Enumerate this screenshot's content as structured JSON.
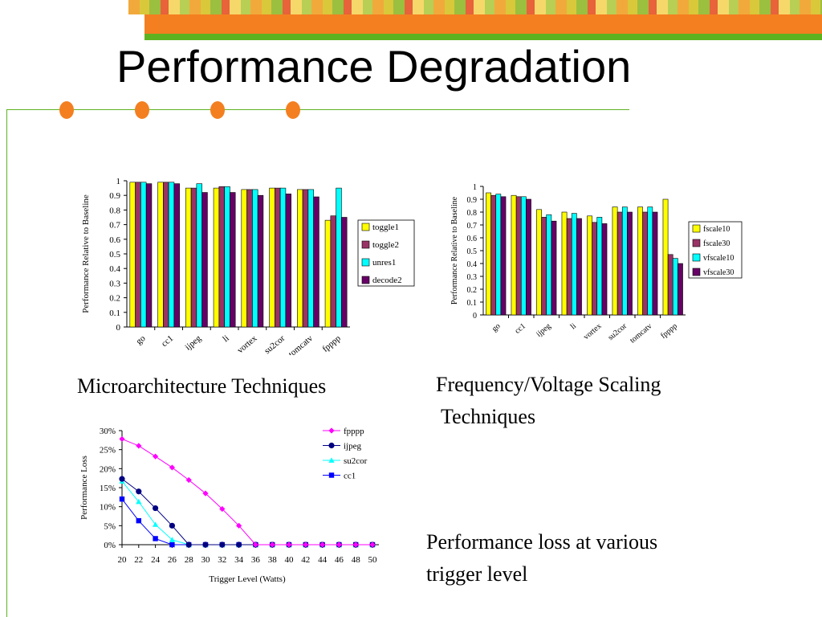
{
  "slide": {
    "title": "Performance Degradation",
    "caption_left": "Microarchitecture Techniques",
    "caption_right_line1": "Frequency/Voltage Scaling",
    "caption_right_line2": " Techniques",
    "caption_bottom_line1": "Performance loss at various",
    "caption_bottom_line2": "trigger level"
  },
  "colors": {
    "accent_orange": "#f47f20",
    "accent_green": "#5fb21f"
  },
  "chart_data": [
    {
      "type": "bar",
      "ylabel": "Performance Relative to Baseline",
      "xlabel": "",
      "ylim": [
        0,
        1
      ],
      "yticks": [
        "0",
        "0.1",
        "0.2",
        "0.3",
        "0.4",
        "0.5",
        "0.6",
        "0.7",
        "0.8",
        "0.9",
        "1"
      ],
      "categories": [
        "go",
        "cc1",
        "ijpeg",
        "li",
        "vortex",
        "su2cor",
        "tomcatv",
        "fpppp"
      ],
      "legend_position": "right",
      "series": [
        {
          "name": "toggle1",
          "color": "#ffff00",
          "values": [
            0.99,
            0.99,
            0.95,
            0.95,
            0.94,
            0.95,
            0.94,
            0.73
          ]
        },
        {
          "name": "toggle2",
          "color": "#993366",
          "values": [
            0.99,
            0.99,
            0.95,
            0.96,
            0.94,
            0.95,
            0.94,
            0.76
          ]
        },
        {
          "name": "unres1",
          "color": "#00ffff",
          "values": [
            0.99,
            0.99,
            0.98,
            0.96,
            0.94,
            0.95,
            0.94,
            0.95
          ]
        },
        {
          "name": "decode2",
          "color": "#660066",
          "values": [
            0.98,
            0.98,
            0.92,
            0.92,
            0.9,
            0.91,
            0.89,
            0.75
          ]
        }
      ]
    },
    {
      "type": "bar",
      "ylabel": "Performance Relative to Baseline",
      "xlabel": "",
      "ylim": [
        0,
        1
      ],
      "yticks": [
        "0",
        "0.1",
        "0.2",
        "0.3",
        "0.4",
        "0.5",
        "0.6",
        "0.7",
        "0.8",
        "0.9",
        "1"
      ],
      "categories": [
        "go",
        "cc1",
        "ijpeg",
        "li",
        "vortex",
        "su2cor",
        "tomcatv",
        "fpppp"
      ],
      "legend_position": "right",
      "series": [
        {
          "name": "fscale10",
          "color": "#ffff00",
          "values": [
            0.95,
            0.93,
            0.82,
            0.8,
            0.77,
            0.84,
            0.84,
            0.9
          ]
        },
        {
          "name": "fscale30",
          "color": "#993366",
          "values": [
            0.93,
            0.92,
            0.76,
            0.75,
            0.72,
            0.8,
            0.8,
            0.47
          ]
        },
        {
          "name": "vfscale10",
          "color": "#00ffff",
          "values": [
            0.94,
            0.92,
            0.78,
            0.79,
            0.76,
            0.84,
            0.84,
            0.44
          ]
        },
        {
          "name": "vfscale30",
          "color": "#660066",
          "values": [
            0.92,
            0.9,
            0.73,
            0.75,
            0.71,
            0.8,
            0.8,
            0.4
          ]
        }
      ]
    },
    {
      "type": "line",
      "xlabel": "Trigger Level (Watts)",
      "ylabel": "Performance Loss",
      "xlim": [
        20,
        50
      ],
      "ylim": [
        0,
        30
      ],
      "xticks": [
        20,
        22,
        24,
        26,
        28,
        30,
        32,
        34,
        36,
        38,
        40,
        42,
        44,
        46,
        48,
        50
      ],
      "yticks": [
        "0%",
        "5%",
        "10%",
        "15%",
        "20%",
        "25%",
        "30%"
      ],
      "legend_position": "top-right",
      "x": [
        20,
        22,
        24,
        26,
        28,
        30,
        32,
        34,
        36,
        38,
        40,
        42,
        44,
        46,
        48,
        50
      ],
      "series": [
        {
          "name": "fpppp",
          "color": "#ff00ff",
          "marker": "diamond",
          "values": [
            27.8,
            26,
            23.2,
            20.3,
            17,
            13.5,
            9.4,
            5,
            0,
            0,
            0,
            0,
            0,
            0,
            0,
            0
          ]
        },
        {
          "name": "ijpeg",
          "color": "#000080",
          "marker": "circle",
          "values": [
            17.3,
            14,
            9.6,
            5,
            0,
            0,
            0,
            0,
            0,
            0,
            0,
            0,
            0,
            0,
            0,
            0
          ]
        },
        {
          "name": "su2cor",
          "color": "#00ffff",
          "marker": "triangle",
          "values": [
            16.7,
            11.3,
            5.3,
            1.3,
            0,
            0,
            0,
            0,
            0,
            0,
            0,
            0,
            0,
            0,
            0,
            0
          ]
        },
        {
          "name": "cc1",
          "color": "#0000ff",
          "marker": "square",
          "values": [
            12,
            6.3,
            1.6,
            0,
            0,
            0,
            0,
            0,
            0,
            0,
            0,
            0,
            0,
            0,
            0,
            0
          ]
        }
      ]
    }
  ]
}
